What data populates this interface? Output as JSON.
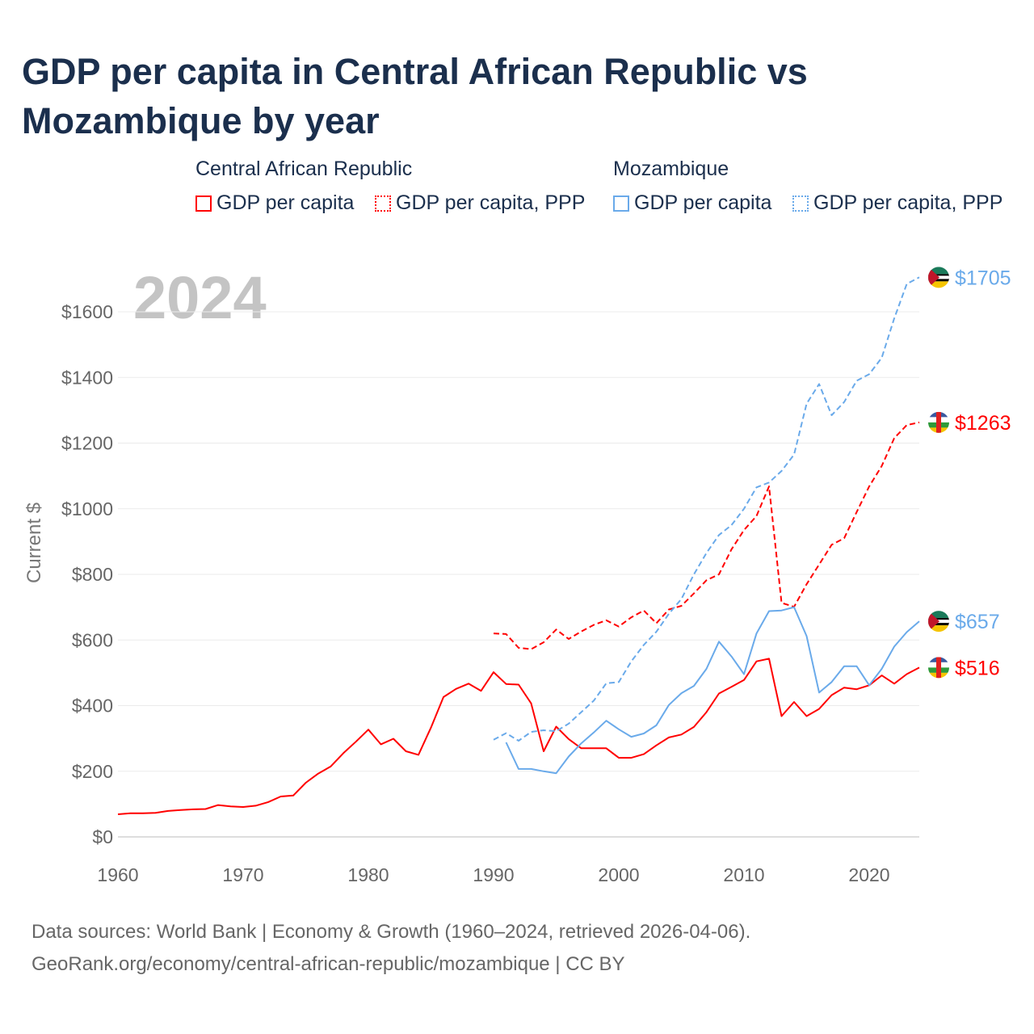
{
  "title": "GDP per capita in Central African Republic vs Mozambique by year",
  "legend": {
    "groups": [
      {
        "name": "Central African Republic",
        "items": [
          "GDP per capita",
          "GDP per capita, PPP"
        ],
        "color": "#ff0000"
      },
      {
        "name": "Mozambique",
        "items": [
          "GDP per capita",
          "GDP per capita, PPP"
        ],
        "color": "#6aaaea"
      }
    ]
  },
  "year_label": "2024",
  "footer": {
    "line1": "Data sources: World Bank | Economy & Growth (1960–2024, retrieved 2026-04-06).",
    "line2": "GeoRank.org/economy/central-african-republic/mozambique | CC BY"
  },
  "chart_data": {
    "type": "line",
    "title": "GDP per capita in Central African Republic vs Mozambique by year",
    "xlabel": "",
    "ylabel": "Current $",
    "xlim": [
      1960,
      2024
    ],
    "ylim": [
      0,
      1700
    ],
    "xticks": [
      1960,
      1970,
      1980,
      1990,
      2000,
      2010,
      2020
    ],
    "yticks": [
      0,
      200,
      400,
      600,
      800,
      1000,
      1200,
      1400,
      1600
    ],
    "ytick_labels": [
      "$0",
      "$200",
      "$400",
      "$600",
      "$800",
      "$1000",
      "$1200",
      "$1400",
      "$1600"
    ],
    "grid": true,
    "series": [
      {
        "name": "Central African Republic GDP per capita",
        "color": "#ff0000",
        "dashed": false,
        "start": 1960,
        "end_label": "$516",
        "values": [
          69,
          72,
          72,
          73,
          79,
          82,
          84,
          85,
          97,
          93,
          91,
          95,
          106,
          123,
          126,
          165,
          193,
          215,
          255,
          290,
          327,
          282,
          299,
          261,
          250,
          333,
          426,
          451,
          467,
          445,
          502,
          466,
          464,
          407,
          261,
          336,
          298,
          270,
          270,
          270,
          241,
          241,
          252,
          279,
          303,
          312,
          335,
          380,
          437,
          457,
          478,
          535,
          543,
          368,
          411,
          368,
          390,
          432,
          455,
          450,
          462,
          492,
          467,
          496,
          516
        ]
      },
      {
        "name": "Central African Republic GDP per capita, PPP",
        "color": "#ff0000",
        "dashed": true,
        "start": 1990,
        "end_label": "$1263",
        "values": [
          620,
          618,
          576,
          572,
          593,
          632,
          603,
          626,
          646,
          660,
          641,
          669,
          690,
          651,
          693,
          704,
          742,
          782,
          800,
          876,
          935,
          978,
          1068,
          713,
          701,
          770,
          830,
          890,
          910,
          990,
          1068,
          1130,
          1215,
          1255,
          1263
        ]
      },
      {
        "name": "Mozambique GDP per capita",
        "color": "#6aaaea",
        "dashed": false,
        "start": 1991,
        "end_label": "$657",
        "values": [
          288,
          207,
          207,
          200,
          194,
          245,
          285,
          318,
          354,
          328,
          305,
          315,
          340,
          402,
          438,
          460,
          512,
          595,
          550,
          496,
          620,
          688,
          690,
          700,
          612,
          440,
          472,
          520,
          520,
          462,
          512,
          580,
          624,
          657
        ]
      },
      {
        "name": "Mozambique GDP per capita, PPP",
        "color": "#6aaaea",
        "dashed": true,
        "start": 1990,
        "end_label": "$1705",
        "values": [
          296,
          316,
          293,
          320,
          325,
          322,
          345,
          380,
          415,
          468,
          472,
          535,
          585,
          625,
          680,
          725,
          800,
          865,
          920,
          950,
          1000,
          1065,
          1080,
          1115,
          1165,
          1320,
          1380,
          1285,
          1325,
          1390,
          1410,
          1460,
          1580,
          1685,
          1705
        ]
      }
    ]
  }
}
